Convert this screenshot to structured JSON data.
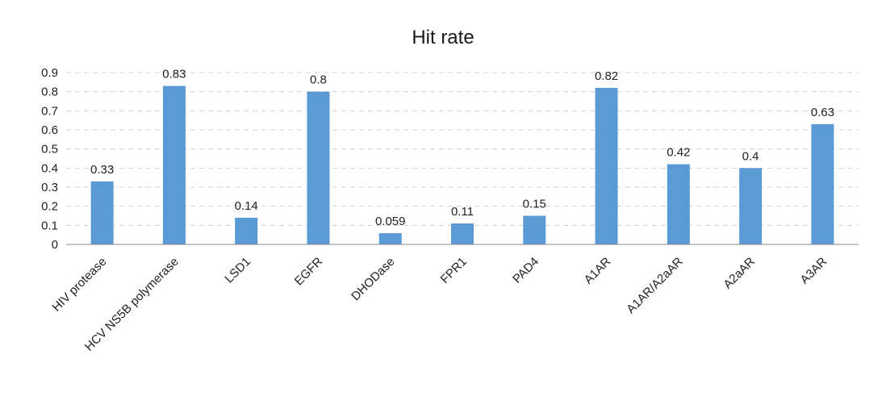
{
  "chart_data": {
    "type": "bar",
    "title": "Hit rate",
    "xlabel": "",
    "ylabel": "",
    "ylim": [
      0,
      0.9
    ],
    "yticks": [
      "0",
      "0.1",
      "0.2",
      "0.3",
      "0.4",
      "0.5",
      "0.6",
      "0.7",
      "0.8",
      "0.9"
    ],
    "grid": true,
    "categories": [
      "HIV protease",
      "HCV NS5B polymerase",
      "LSD1",
      "EGFR",
      "DHODase",
      "FPR1",
      "PAD4",
      "A1AR",
      "A1AR/A2aAR",
      "A2aAR",
      "A3AR"
    ],
    "values": [
      0.33,
      0.83,
      0.14,
      0.8,
      0.059,
      0.11,
      0.15,
      0.82,
      0.42,
      0.4,
      0.63
    ],
    "data_labels": [
      "0.33",
      "0.83",
      "0.14",
      "0.8",
      "0.059",
      "0.11",
      "0.15",
      "0.82",
      "0.42",
      "0.4",
      "0.63"
    ],
    "bar_color": "#5b9bd5"
  }
}
